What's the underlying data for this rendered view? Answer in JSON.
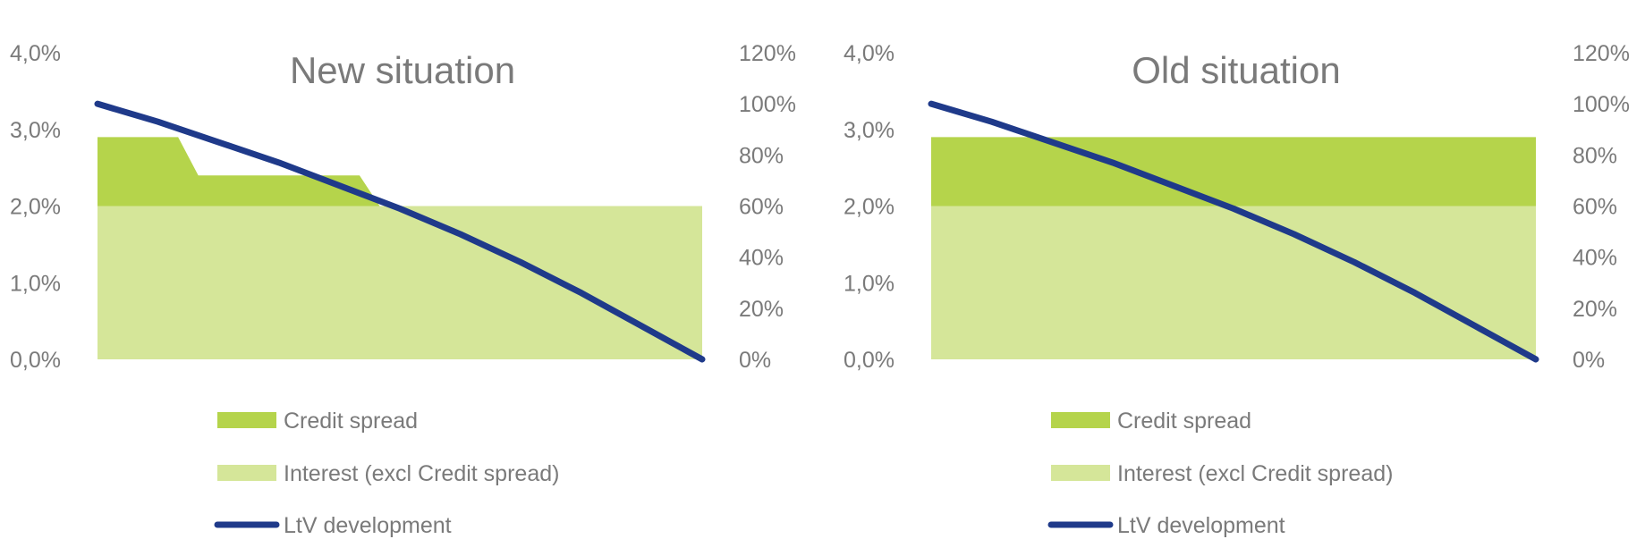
{
  "colors": {
    "credit_spread": "#b5d44b",
    "interest": "#d5e699",
    "ltv": "#1f3a8a",
    "text": "#7a7a7a"
  },
  "chart_data": [
    {
      "type": "area",
      "title": "New situation",
      "y_left": {
        "ticks": [
          "0,0%",
          "1,0%",
          "2,0%",
          "3,0%",
          "4,0%"
        ],
        "lim": [
          0,
          4
        ]
      },
      "y_right": {
        "ticks": [
          "0%",
          "20%",
          "40%",
          "60%",
          "80%",
          "100%",
          "120%"
        ],
        "lim": [
          0,
          120
        ]
      },
      "x": [
        0,
        4,
        5,
        13,
        14,
        30
      ],
      "series": [
        {
          "name": "Interest (excl Credit spread)",
          "axis": "left",
          "stacked": true,
          "values": [
            2.0,
            2.0,
            2.0,
            2.0,
            2.0,
            2.0
          ]
        },
        {
          "name": "Credit spread",
          "axis": "left",
          "stacked": true,
          "values": [
            0.9,
            0.9,
            0.4,
            0.4,
            0.0,
            0.0
          ]
        },
        {
          "name": "LtV development",
          "axis": "right",
          "type": "line",
          "x": [
            0,
            3,
            6,
            9,
            12,
            15,
            18,
            21,
            24,
            27,
            30
          ],
          "values": [
            100,
            93,
            85,
            77,
            68,
            59,
            49,
            38,
            26,
            13,
            0
          ]
        }
      ],
      "legend": {
        "position": "bottom",
        "items": [
          "Credit spread",
          "Interest (excl Credit spread)",
          "LtV development"
        ]
      }
    },
    {
      "type": "area",
      "title": "Old situation",
      "y_left": {
        "ticks": [
          "0,0%",
          "1,0%",
          "2,0%",
          "3,0%",
          "4,0%"
        ],
        "lim": [
          0,
          4
        ]
      },
      "y_right": {
        "ticks": [
          "0%",
          "20%",
          "40%",
          "60%",
          "80%",
          "100%",
          "120%"
        ],
        "lim": [
          0,
          120
        ]
      },
      "x": [
        0,
        30
      ],
      "series": [
        {
          "name": "Interest (excl Credit spread)",
          "axis": "left",
          "stacked": true,
          "values": [
            2.0,
            2.0
          ]
        },
        {
          "name": "Credit spread",
          "axis": "left",
          "stacked": true,
          "values": [
            0.9,
            0.9
          ]
        },
        {
          "name": "LtV development",
          "axis": "right",
          "type": "line",
          "x": [
            0,
            3,
            6,
            9,
            12,
            15,
            18,
            21,
            24,
            27,
            30
          ],
          "values": [
            100,
            93,
            85,
            77,
            68,
            59,
            49,
            38,
            26,
            13,
            0
          ]
        }
      ],
      "legend": {
        "position": "bottom",
        "items": [
          "Credit spread",
          "Interest (excl Credit spread)",
          "LtV development"
        ]
      }
    }
  ]
}
